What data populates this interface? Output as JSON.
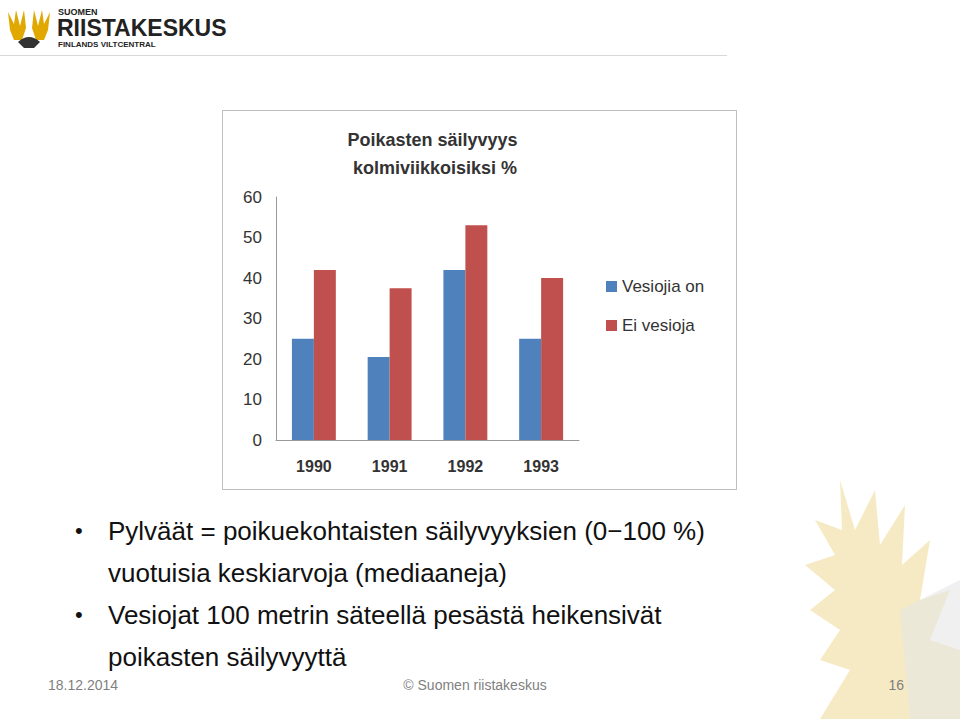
{
  "chart_data": {
    "type": "bar",
    "title": "Poikasten säilyvyys kolmiviikkoisiksi %",
    "categories": [
      "1990",
      "1991",
      "1992",
      "1993"
    ],
    "series": [
      {
        "name": "Vesiojia on",
        "color": "#4f81bd",
        "values": [
          25,
          20.5,
          42,
          25
        ]
      },
      {
        "name": "Ei vesioja",
        "color": "#c0504d",
        "values": [
          42,
          37.5,
          53,
          40
        ]
      }
    ],
    "ylim": [
      0,
      60
    ],
    "yticks": [
      0,
      10,
      20,
      30,
      40,
      50,
      60
    ],
    "grid": false,
    "legend": "right"
  },
  "slide": {
    "logo": {
      "top": "SUOMEN",
      "main": "RIISTAKESKUS",
      "bottom": "FINLANDS VILTCENTRAL"
    },
    "bullets": [
      [
        "Pylväät = poikuekohtaisten säilyvyyksien (0−100 %)",
        "vuotuisia keskiarvoja (mediaaneja)"
      ],
      [
        "Vesiojat 100 metrin säteellä pesästä heikensivät",
        "poikasten säilyvyyttä"
      ]
    ],
    "date": "18.12.2014",
    "footer": "© Suomen riistakeskus",
    "page": "16"
  }
}
